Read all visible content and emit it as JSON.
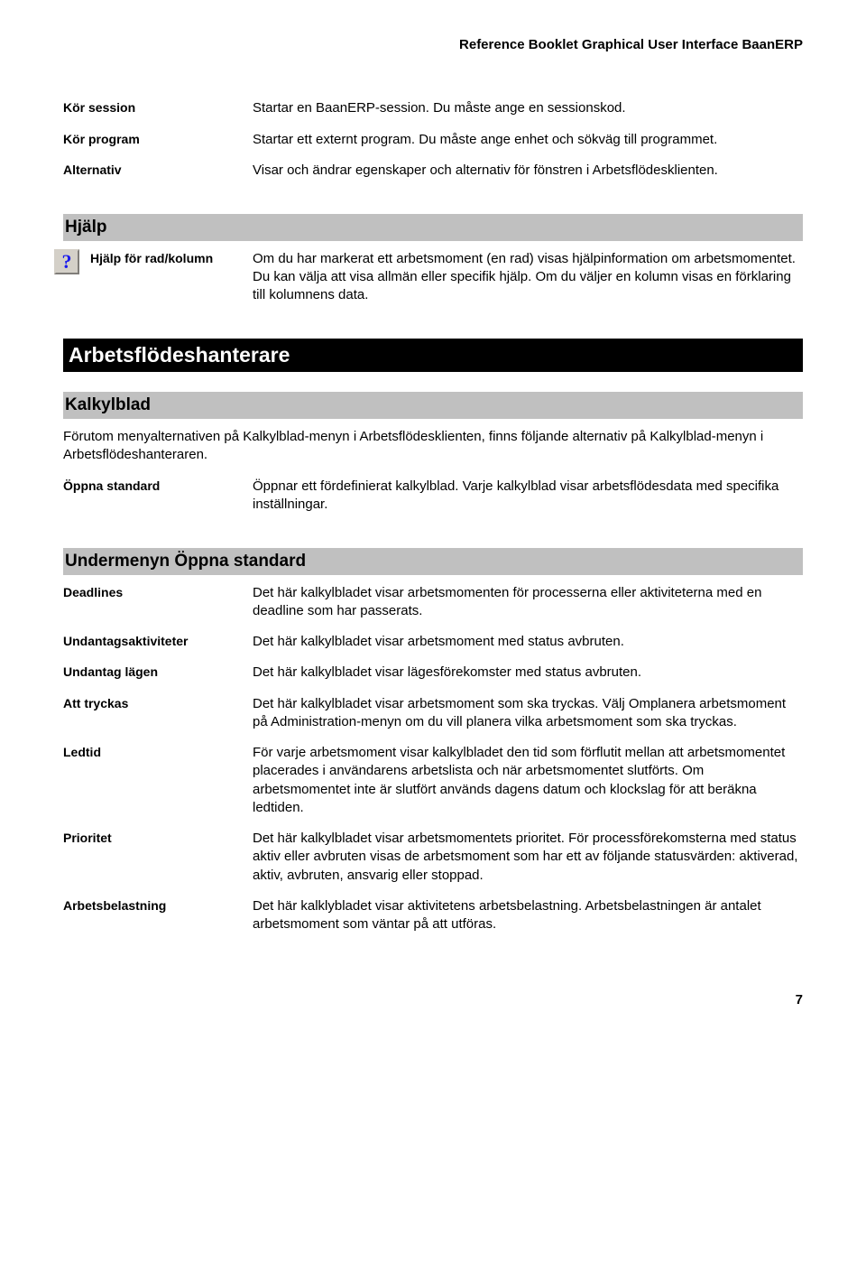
{
  "header": "Reference Booklet Graphical User Interface BaanERP",
  "intro_defs": [
    {
      "term": "Kör session",
      "desc": "Startar en BaanERP-session. Du måste ange en sessionskod."
    },
    {
      "term": "Kör program",
      "desc": "Startar ett externt program. Du måste ange enhet och sökväg till programmet."
    },
    {
      "term": "Alternativ",
      "desc": "Visar och ändrar egenskaper och alternativ för fönstren i Arbetsflödesklienten."
    }
  ],
  "help": {
    "title": "Hjälp",
    "row": {
      "term": "Hjälp för rad/kolumn",
      "desc": "Om du har markerat ett arbetsmoment (en rad) visas hjälpinformation om arbetsmomentet. Du kan välja att visa allmän eller specifik hjälp. Om du väljer en kolumn visas en förklaring till kolumnens data."
    }
  },
  "workflow": {
    "title": "Arbetsflödeshanterare"
  },
  "kalkylblad": {
    "title": "Kalkylblad",
    "intro": "Förutom menyalternativen på Kalkylblad-menyn i Arbetsflödesklienten, finns följande alternativ på Kalkylblad-menyn i Arbetsflödeshanteraren.",
    "row": {
      "term": "Öppna standard",
      "desc": "Öppnar ett fördefinierat kalkylblad. Varje kalkylblad visar arbetsflödesdata med specifika inställningar."
    }
  },
  "submenu": {
    "title": "Undermenyn Öppna standard",
    "rows": [
      {
        "term": "Deadlines",
        "desc": "Det här kalkylbladet visar arbetsmomenten för processerna eller aktiviteterna med en deadline som har passerats."
      },
      {
        "term": "Undantagsaktiviteter",
        "desc": "Det här kalkylbladet visar arbetsmoment med status avbruten."
      },
      {
        "term": "Undantag lägen",
        "desc": "Det här kalkylbladet visar lägesförekomster med status avbruten."
      },
      {
        "term": "Att tryckas",
        "desc": "Det här kalkylbladet visar arbetsmoment som ska tryckas. Välj Omplanera arbetsmoment på Administration-menyn om du vill planera vilka arbetsmoment som ska tryckas."
      },
      {
        "term": "Ledtid",
        "desc": "För varje arbetsmoment visar kalkylbladet den tid som förflutit mellan att arbetsmomentet placerades i användarens arbetslista och när arbetsmomentet slutförts. Om arbetsmomentet inte är slutfört används dagens datum och klockslag för att beräkna ledtiden."
      },
      {
        "term": "Prioritet",
        "desc": "Det här kalkylbladet visar arbetsmomentets prioritet. För processförekomsterna med status aktiv eller avbruten visas de arbetsmoment som har ett av följande statusvärden: aktiverad, aktiv, avbruten, ansvarig eller stoppad."
      },
      {
        "term": "Arbetsbelastning",
        "desc": "Det här kalklybladet visar aktivitetens arbetsbelastning. Arbetsbelastningen är antalet arbetsmoment som väntar på att utföras."
      }
    ]
  },
  "page_number": "7",
  "colors": {
    "grey_bar": "#c0c0c0",
    "black_bar": "#000000",
    "icon_bg": "#d4d0c8",
    "icon_fg": "#1a1aee"
  }
}
